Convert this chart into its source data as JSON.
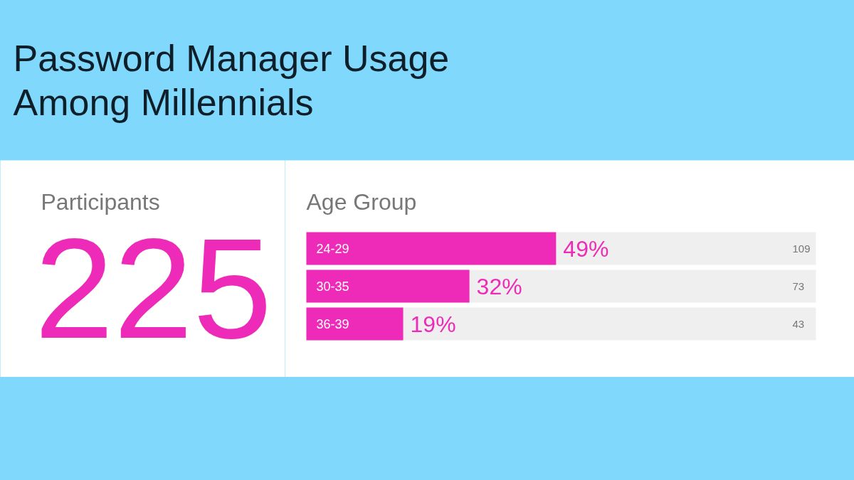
{
  "chart_data": [
    {
      "type": "other",
      "title": "Participants",
      "annotations": [
        "225"
      ]
    },
    {
      "type": "bar",
      "orientation": "horizontal",
      "title": "Password Manager Usage Among Millennials",
      "ylabel": "Age Group",
      "categories": [
        "24-29",
        "30-35",
        "36-39"
      ],
      "values": [
        49,
        32,
        19
      ],
      "value_labels": [
        "49%",
        "32%",
        "19%"
      ],
      "color": "#ee2ab8",
      "tick_labels": "y",
      "annotations": [
        "109",
        "73",
        "43"
      ]
    }
  ]
}
